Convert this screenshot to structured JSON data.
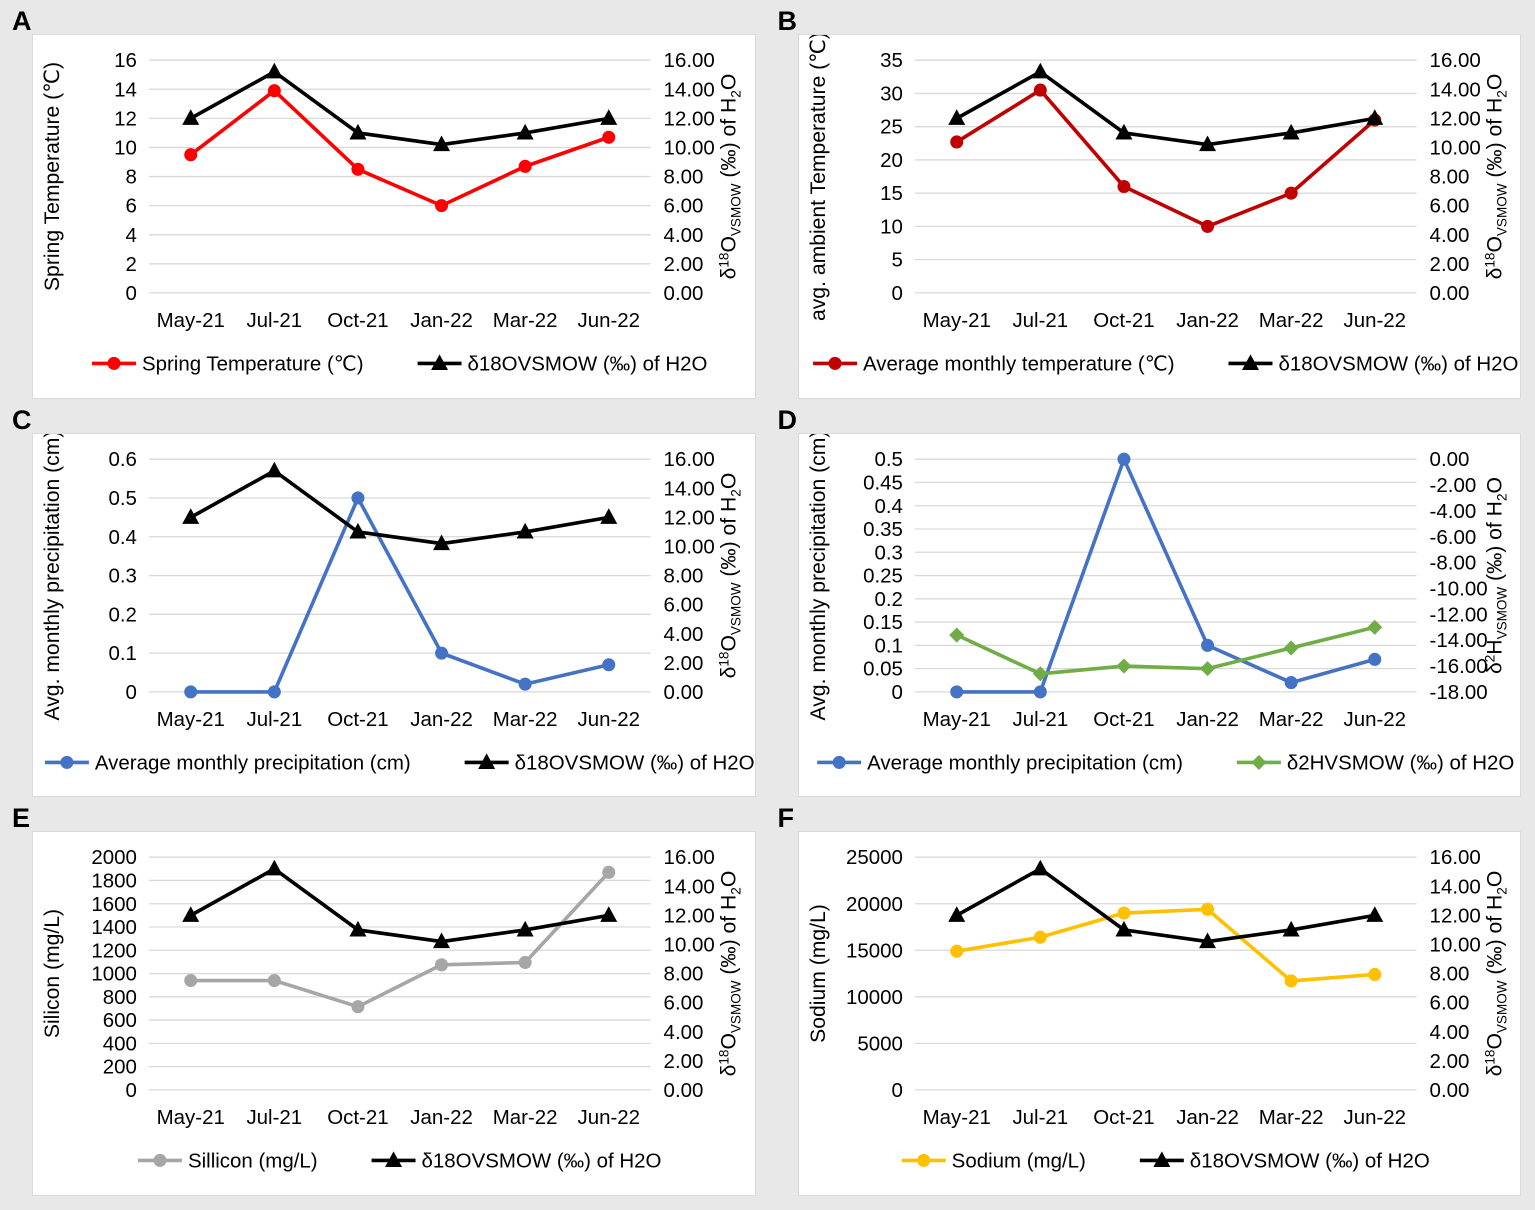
{
  "page": {
    "background": "#e8e8e8",
    "panel_background": "#ffffff",
    "gridline_color": "#d9d9d9",
    "text_color": "#000000"
  },
  "chart_data": [
    {
      "label": "A",
      "type": "line",
      "x_labels": [
        "May-21",
        "Jul-21",
        "Oct-21",
        "Jan-22",
        "Mar-22",
        "Jun-22"
      ],
      "left_axis": {
        "title_runs": [
          [
            "Spring Temperature (℃)"
          ]
        ],
        "min": 0,
        "max": 16,
        "ticks": [
          [
            "0",
            0
          ],
          [
            "2",
            2
          ],
          [
            "4",
            4
          ],
          [
            "6",
            6
          ],
          [
            "8",
            8
          ],
          [
            "10",
            10
          ],
          [
            "12",
            12
          ],
          [
            "14",
            14
          ],
          [
            "16",
            16
          ]
        ]
      },
      "right_axis": {
        "title_runs": [
          [
            "δ"
          ],
          [
            "18",
            "sup"
          ],
          [
            "O"
          ],
          [
            "VSMOW",
            "sub"
          ],
          [
            " (‰) of H"
          ],
          [
            "2",
            "sub"
          ],
          [
            "O"
          ]
        ],
        "min": 0,
        "max": 16,
        "ticks": [
          [
            "0.00",
            0
          ],
          [
            "2.00",
            2
          ],
          [
            "4.00",
            4
          ],
          [
            "6.00",
            6
          ],
          [
            "8.00",
            8
          ],
          [
            "10.00",
            10
          ],
          [
            "12.00",
            12
          ],
          [
            "14.00",
            14
          ],
          [
            "16.00",
            16
          ]
        ]
      },
      "series": [
        {
          "name": "Spring Temperature (℃)",
          "axis": "left",
          "color": "#ff0000",
          "marker": "circle",
          "values": [
            9.5,
            13.9,
            8.5,
            6.0,
            8.7,
            10.7
          ]
        },
        {
          "name": "δ18OVSMOW (‰) of H2O",
          "axis": "right",
          "color": "#000000",
          "marker": "triangle",
          "values": [
            12.0,
            15.2,
            11.0,
            10.2,
            11.0,
            12.0
          ]
        }
      ]
    },
    {
      "label": "B",
      "type": "line",
      "x_labels": [
        "May-21",
        "Jul-21",
        "Oct-21",
        "Jan-22",
        "Mar-22",
        "Jun-22"
      ],
      "left_axis": {
        "title_runs": [
          [
            "avg. ambient Temperature (℃)"
          ]
        ],
        "min": 0,
        "max": 35,
        "ticks": [
          [
            "0",
            0
          ],
          [
            "5",
            5
          ],
          [
            "10",
            10
          ],
          [
            "15",
            15
          ],
          [
            "20",
            20
          ],
          [
            "25",
            25
          ],
          [
            "30",
            30
          ],
          [
            "35",
            35
          ]
        ]
      },
      "right_axis": {
        "title_runs": [
          [
            "δ"
          ],
          [
            "18",
            "sup"
          ],
          [
            "O"
          ],
          [
            "VSMOW",
            "sub"
          ],
          [
            " (‰) of H"
          ],
          [
            "2",
            "sub"
          ],
          [
            "O"
          ]
        ],
        "min": 0,
        "max": 16,
        "ticks": [
          [
            "0.00",
            0
          ],
          [
            "2.00",
            2
          ],
          [
            "4.00",
            4
          ],
          [
            "6.00",
            6
          ],
          [
            "8.00",
            8
          ],
          [
            "10.00",
            10
          ],
          [
            "12.00",
            12
          ],
          [
            "14.00",
            14
          ],
          [
            "16.00",
            16
          ]
        ]
      },
      "series": [
        {
          "name": "Average monthly temperature (℃)",
          "axis": "left",
          "color": "#c00000",
          "marker": "circle",
          "values": [
            22.7,
            30.5,
            16.0,
            10.0,
            15.0,
            26.0
          ]
        },
        {
          "name": "δ18OVSMOW (‰) of H2O",
          "axis": "right",
          "color": "#000000",
          "marker": "triangle",
          "values": [
            12.0,
            15.2,
            11.0,
            10.2,
            11.0,
            12.0
          ]
        }
      ]
    },
    {
      "label": "C",
      "type": "line",
      "x_labels": [
        "May-21",
        "Jul-21",
        "Oct-21",
        "Jan-22",
        "Mar-22",
        "Jun-22"
      ],
      "left_axis": {
        "title_runs": [
          [
            "Avg. monthly precipitation (cm)"
          ]
        ],
        "min": 0,
        "max": 0.6,
        "ticks": [
          [
            "0",
            0
          ],
          [
            "0.1",
            0.1
          ],
          [
            "0.2",
            0.2
          ],
          [
            "0.3",
            0.3
          ],
          [
            "0.4",
            0.4
          ],
          [
            "0.5",
            0.5
          ],
          [
            "0.6",
            0.6
          ]
        ]
      },
      "right_axis": {
        "title_runs": [
          [
            "δ"
          ],
          [
            "18",
            "sup"
          ],
          [
            "O"
          ],
          [
            "VSMOW",
            "sub"
          ],
          [
            " (‰) of H"
          ],
          [
            "2",
            "sub"
          ],
          [
            "O"
          ]
        ],
        "min": 0,
        "max": 16,
        "ticks": [
          [
            "0.00",
            0
          ],
          [
            "2.00",
            2
          ],
          [
            "4.00",
            4
          ],
          [
            "6.00",
            6
          ],
          [
            "8.00",
            8
          ],
          [
            "10.00",
            10
          ],
          [
            "12.00",
            12
          ],
          [
            "14.00",
            14
          ],
          [
            "16.00",
            16
          ]
        ]
      },
      "series": [
        {
          "name": "Average monthly precipitation (cm)",
          "axis": "left",
          "color": "#4472c4",
          "marker": "circle",
          "values": [
            0.0,
            0.0,
            0.5,
            0.1,
            0.02,
            0.07
          ]
        },
        {
          "name": "δ18OVSMOW (‰) of H2O",
          "axis": "right",
          "color": "#000000",
          "marker": "triangle",
          "values": [
            12.0,
            15.2,
            11.0,
            10.2,
            11.0,
            12.0
          ]
        }
      ]
    },
    {
      "label": "D",
      "type": "line",
      "x_labels": [
        "May-21",
        "Jul-21",
        "Oct-21",
        "Jan-22",
        "Mar-22",
        "Jun-22"
      ],
      "left_axis": {
        "title_runs": [
          [
            "Avg. monthly precipitation (cm)"
          ]
        ],
        "min": 0,
        "max": 0.5,
        "ticks": [
          [
            "0",
            0
          ],
          [
            "0.05",
            0.05
          ],
          [
            "0.1",
            0.1
          ],
          [
            "0.15",
            0.15
          ],
          [
            "0.2",
            0.2
          ],
          [
            "0.25",
            0.25
          ],
          [
            "0.3",
            0.3
          ],
          [
            "0.35",
            0.35
          ],
          [
            "0.4",
            0.4
          ],
          [
            "0.45",
            0.45
          ],
          [
            "0.5",
            0.5
          ]
        ]
      },
      "right_axis": {
        "title_runs": [
          [
            "δ"
          ],
          [
            "2",
            "sup"
          ],
          [
            "H"
          ],
          [
            "VSMOW",
            "sub"
          ],
          [
            " (‰) of H"
          ],
          [
            "2",
            "sub"
          ],
          [
            "O"
          ]
        ],
        "min": -18,
        "max": 0,
        "ticks": [
          [
            "0.00",
            0
          ],
          [
            "-2.00",
            -2
          ],
          [
            "-4.00",
            -4
          ],
          [
            "-6.00",
            -6
          ],
          [
            "-8.00",
            -8
          ],
          [
            "-10.00",
            -10
          ],
          [
            "-12.00",
            -12
          ],
          [
            "-14.00",
            -14
          ],
          [
            "-16.00",
            -16
          ],
          [
            "-18.00",
            -18
          ]
        ]
      },
      "series": [
        {
          "name": "Average monthly precipitation (cm)",
          "axis": "left",
          "color": "#4472c4",
          "marker": "circle",
          "values": [
            0.0,
            0.0,
            0.5,
            0.1,
            0.02,
            0.07
          ]
        },
        {
          "name": "δ2HVSMOW (‰) of H2O",
          "axis": "right",
          "color": "#70ad47",
          "marker": "diamond",
          "values": [
            -13.6,
            -16.6,
            -16.0,
            -16.2,
            -14.6,
            -13.0
          ]
        }
      ]
    },
    {
      "label": "E",
      "type": "line",
      "x_labels": [
        "May-21",
        "Jul-21",
        "Oct-21",
        "Jan-22",
        "Mar-22",
        "Jun-22"
      ],
      "left_axis": {
        "title_runs": [
          [
            "Silicon (mg/L)"
          ]
        ],
        "min": 0,
        "max": 2000,
        "ticks": [
          [
            "0",
            0
          ],
          [
            "200",
            200
          ],
          [
            "400",
            400
          ],
          [
            "600",
            600
          ],
          [
            "800",
            800
          ],
          [
            "1000",
            1000
          ],
          [
            "1200",
            1200
          ],
          [
            "1400",
            1400
          ],
          [
            "1600",
            1600
          ],
          [
            "1800",
            1800
          ],
          [
            "2000",
            2000
          ]
        ]
      },
      "right_axis": {
        "title_runs": [
          [
            "δ"
          ],
          [
            "18",
            "sup"
          ],
          [
            "O"
          ],
          [
            "VSMOW",
            "sub"
          ],
          [
            " (‰) of H"
          ],
          [
            "2",
            "sub"
          ],
          [
            "O"
          ]
        ],
        "min": 0,
        "max": 16,
        "ticks": [
          [
            "0.00",
            0
          ],
          [
            "2.00",
            2
          ],
          [
            "4.00",
            4
          ],
          [
            "6.00",
            6
          ],
          [
            "8.00",
            8
          ],
          [
            "10.00",
            10
          ],
          [
            "12.00",
            12
          ],
          [
            "14.00",
            14
          ],
          [
            "16.00",
            16
          ]
        ]
      },
      "series": [
        {
          "name": "Sillicon (mg/L)",
          "axis": "left",
          "color": "#a6a6a6",
          "marker": "circle",
          "values": [
            940,
            940,
            715,
            1075,
            1095,
            1870
          ]
        },
        {
          "name": "δ18OVSMOW (‰) of H2O",
          "axis": "right",
          "color": "#000000",
          "marker": "triangle",
          "values": [
            12.0,
            15.2,
            11.0,
            10.2,
            11.0,
            12.0
          ]
        }
      ]
    },
    {
      "label": "F",
      "type": "line",
      "x_labels": [
        "May-21",
        "Jul-21",
        "Oct-21",
        "Jan-22",
        "Mar-22",
        "Jun-22"
      ],
      "left_axis": {
        "title_runs": [
          [
            "Sodium (mg/L)"
          ]
        ],
        "min": 0,
        "max": 25000,
        "ticks": [
          [
            "0",
            0
          ],
          [
            "5000",
            5000
          ],
          [
            "10000",
            10000
          ],
          [
            "15000",
            15000
          ],
          [
            "20000",
            20000
          ],
          [
            "25000",
            25000
          ]
        ]
      },
      "right_axis": {
        "title_runs": [
          [
            "δ"
          ],
          [
            "18",
            "sup"
          ],
          [
            "O"
          ],
          [
            "VSMOW",
            "sub"
          ],
          [
            " (‰) of H"
          ],
          [
            "2",
            "sub"
          ],
          [
            "O"
          ]
        ],
        "min": 0,
        "max": 16,
        "ticks": [
          [
            "0.00",
            0
          ],
          [
            "2.00",
            2
          ],
          [
            "4.00",
            4
          ],
          [
            "6.00",
            6
          ],
          [
            "8.00",
            8
          ],
          [
            "10.00",
            10
          ],
          [
            "12.00",
            12
          ],
          [
            "14.00",
            14
          ],
          [
            "16.00",
            16
          ]
        ]
      },
      "series": [
        {
          "name": "Sodium (mg/L)",
          "axis": "left",
          "color": "#ffc000",
          "marker": "circle",
          "values": [
            14900,
            16400,
            19000,
            19400,
            11700,
            12400
          ]
        },
        {
          "name": "δ18OVSMOW (‰) of H2O",
          "axis": "right",
          "color": "#000000",
          "marker": "triangle",
          "values": [
            12.0,
            15.2,
            11.0,
            10.2,
            11.0,
            12.0
          ]
        }
      ]
    }
  ]
}
